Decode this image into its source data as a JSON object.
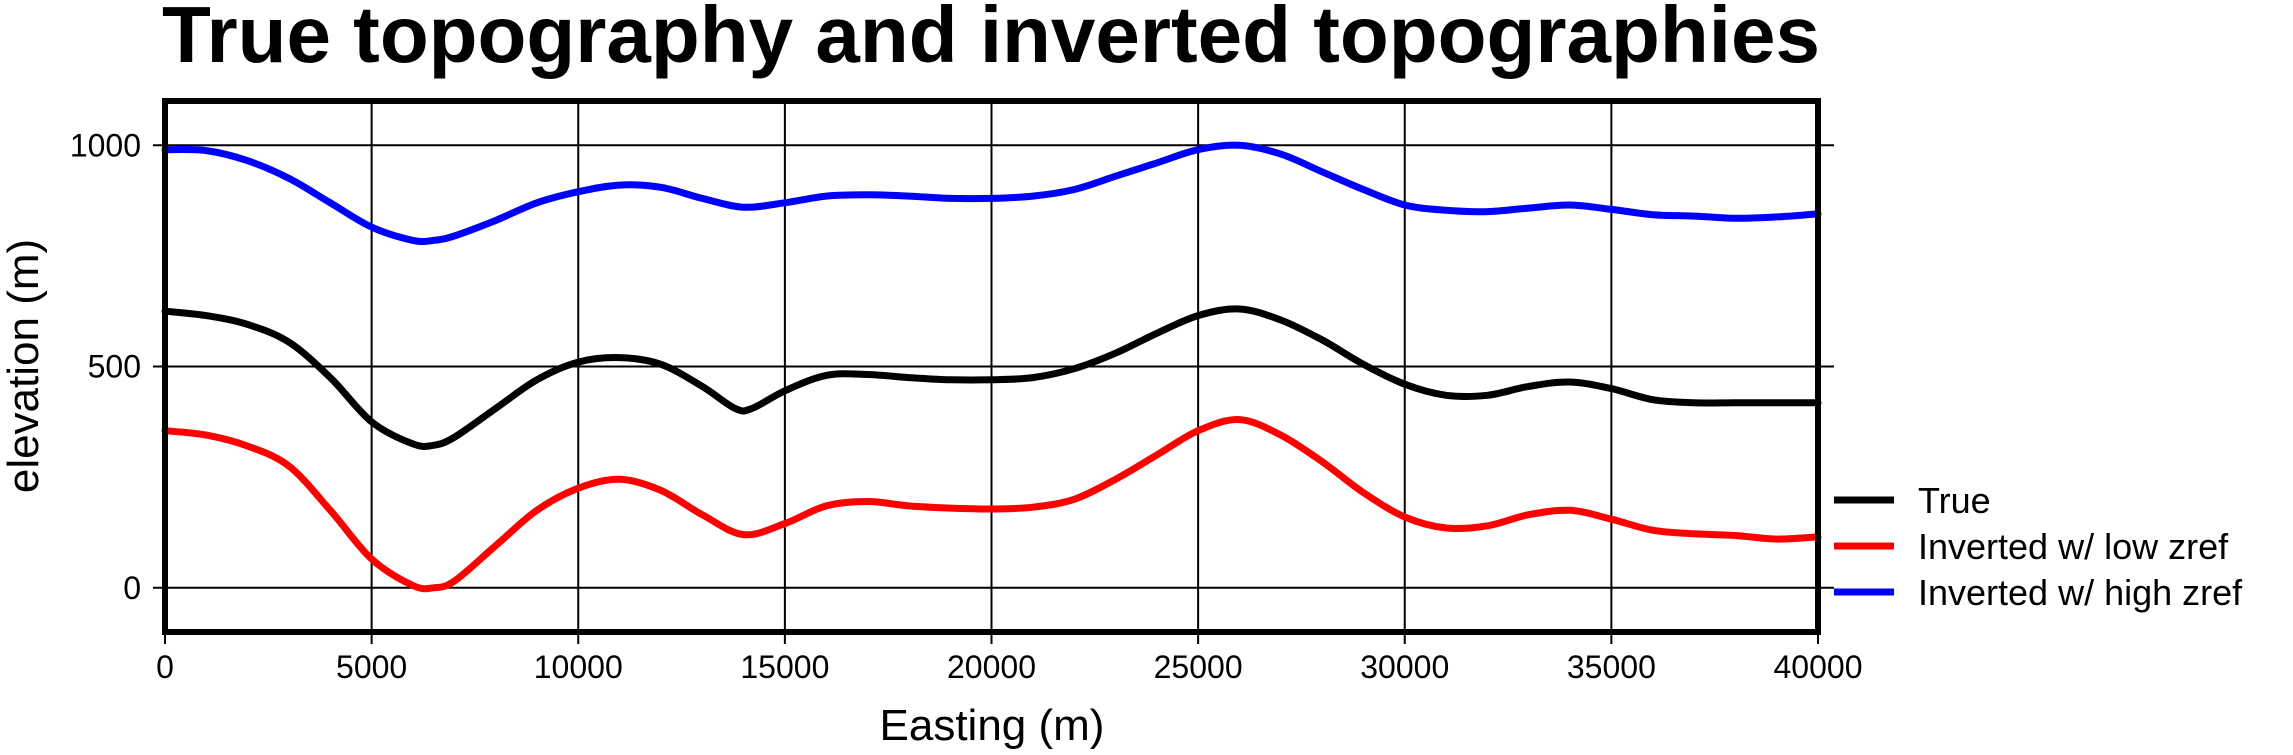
{
  "chart_data": {
    "type": "line",
    "title": "True topography and inverted topographies",
    "xlabel": "Easting (m)",
    "ylabel": "elevation (m)",
    "xlim": [
      0,
      40000
    ],
    "ylim": [
      -100,
      1100
    ],
    "xticks": [
      0,
      5000,
      10000,
      15000,
      20000,
      25000,
      30000,
      35000,
      40000
    ],
    "yticks": [
      0,
      500,
      1000
    ],
    "grid": true,
    "legend": "outside-right",
    "series": [
      {
        "name": "True",
        "color": "#000000",
        "x": [
          0,
          1000,
          2000,
          3000,
          4000,
          5000,
          6000,
          6500,
          7000,
          8000,
          9000,
          10000,
          11000,
          12000,
          13000,
          13800,
          14200,
          15000,
          16000,
          17000,
          18000,
          19000,
          20000,
          21000,
          22000,
          23000,
          24000,
          25000,
          26000,
          27000,
          28000,
          29000,
          30000,
          31000,
          32000,
          33000,
          34000,
          35000,
          36000,
          37000,
          38000,
          39000,
          40000
        ],
        "y": [
          625,
          615,
          595,
          555,
          475,
          375,
          325,
          322,
          340,
          405,
          470,
          510,
          520,
          505,
          455,
          405,
          405,
          445,
          480,
          482,
          475,
          470,
          470,
          475,
          495,
          530,
          575,
          615,
          630,
          605,
          560,
          505,
          460,
          435,
          435,
          455,
          465,
          450,
          425,
          418,
          418,
          418,
          418
        ]
      },
      {
        "name": "Inverted w/ low zref",
        "color": "#ff0000",
        "x": [
          0,
          1000,
          2000,
          3000,
          4000,
          5000,
          6000,
          6500,
          7000,
          8000,
          9000,
          10000,
          11000,
          12000,
          13000,
          14000,
          15000,
          16000,
          17000,
          18000,
          19000,
          20000,
          21000,
          22000,
          23000,
          24000,
          25000,
          26000,
          27000,
          28000,
          29000,
          30000,
          31000,
          32000,
          33000,
          34000,
          35000,
          36000,
          37000,
          38000,
          39000,
          40000
        ],
        "y": [
          355,
          345,
          320,
          275,
          175,
          65,
          5,
          0,
          15,
          95,
          175,
          225,
          245,
          220,
          165,
          120,
          145,
          185,
          195,
          185,
          180,
          178,
          182,
          200,
          245,
          300,
          355,
          380,
          345,
          285,
          215,
          160,
          135,
          140,
          165,
          175,
          155,
          130,
          122,
          118,
          110,
          115
        ]
      },
      {
        "name": "Inverted w/ high zref",
        "color": "#0000ff",
        "x": [
          0,
          1000,
          2000,
          3000,
          4000,
          5000,
          6000,
          6500,
          7000,
          8000,
          9000,
          10000,
          11000,
          12000,
          13000,
          14000,
          15000,
          16000,
          17000,
          18000,
          19000,
          20000,
          21000,
          22000,
          23000,
          24000,
          25000,
          26000,
          27000,
          28000,
          29000,
          30000,
          31000,
          32000,
          33000,
          34000,
          35000,
          36000,
          37000,
          38000,
          39000,
          40000
        ],
        "y": [
          990,
          988,
          965,
          925,
          870,
          815,
          785,
          785,
          795,
          830,
          870,
          895,
          910,
          905,
          880,
          860,
          870,
          885,
          888,
          885,
          880,
          880,
          885,
          900,
          930,
          960,
          990,
          1000,
          980,
          940,
          900,
          865,
          853,
          850,
          858,
          865,
          855,
          843,
          840,
          835,
          838,
          845
        ]
      }
    ]
  }
}
